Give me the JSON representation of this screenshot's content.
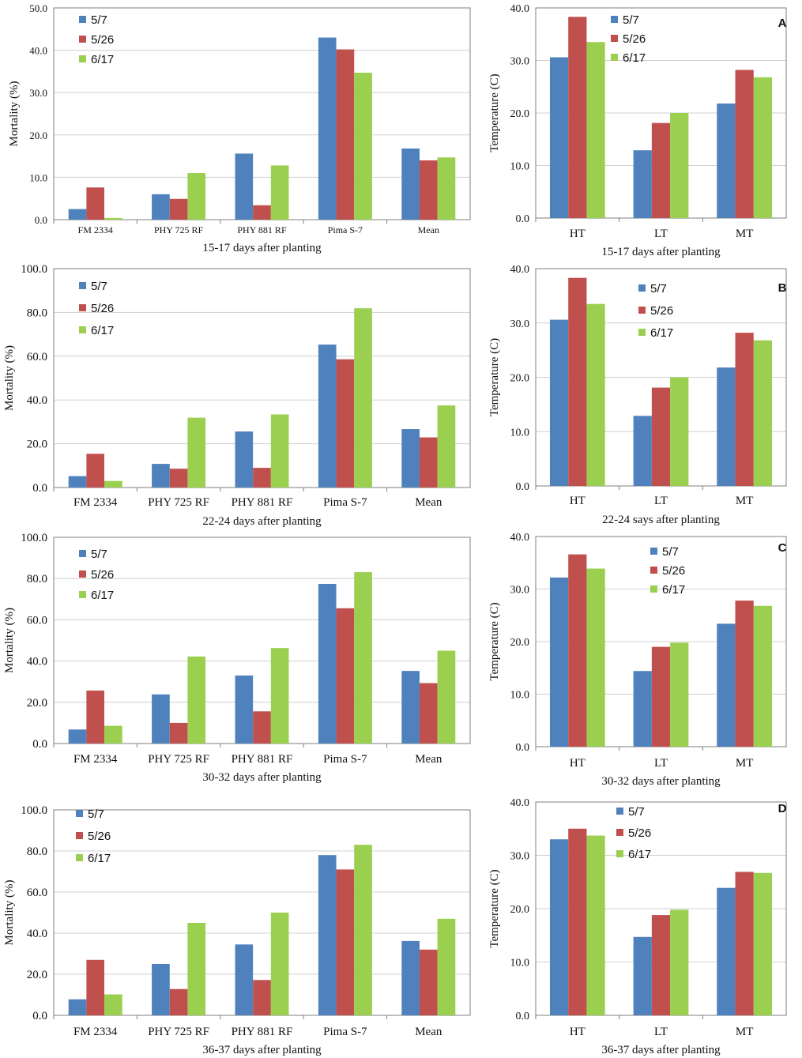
{
  "colors": {
    "s1": "#4f81bd",
    "s2": "#c0504d",
    "s3": "#9bcf4f",
    "axis": "#7f7f7f",
    "grid": "#d0d0d0"
  },
  "chart_data": [
    {
      "type": "bar",
      "id": "mort-a",
      "ylabel": "Mortality (%)",
      "xlabel": "15-17 days after planting",
      "ylim": [
        0,
        50
      ],
      "yticks": [
        "0.0",
        "10.0",
        "20.0",
        "30.0",
        "40.0",
        "50.0"
      ],
      "categories": [
        "FM 2334",
        "PHY 725 RF",
        "PHY 881 RF",
        "Pima S-7",
        "Mean"
      ],
      "series": [
        {
          "name": "5/7",
          "values": [
            2.5,
            6.0,
            15.6,
            43.0,
            16.8
          ]
        },
        {
          "name": "5/26",
          "values": [
            7.6,
            4.9,
            3.4,
            40.2,
            14.0
          ]
        },
        {
          "name": "6/17",
          "values": [
            0.4,
            11.0,
            12.8,
            34.7,
            14.7
          ]
        }
      ],
      "legend": "top-left"
    },
    {
      "type": "bar",
      "id": "temp-a",
      "panel_label": "A",
      "ylabel": "Temperature (C)",
      "xlabel": "15-17 days after planting",
      "ylim": [
        0,
        40
      ],
      "yticks": [
        "0.0",
        "10.0",
        "20.0",
        "30.0",
        "40.0"
      ],
      "categories": [
        "HT",
        "LT",
        "MT"
      ],
      "series": [
        {
          "name": "5/7",
          "values": [
            30.6,
            12.9,
            21.8
          ]
        },
        {
          "name": "5/26",
          "values": [
            38.3,
            18.1,
            28.2
          ]
        },
        {
          "name": "6/17",
          "values": [
            33.5,
            20.0,
            26.8
          ]
        }
      ],
      "legend": "top-center"
    },
    {
      "type": "bar",
      "id": "mort-b",
      "ylabel": "Mortality (%)",
      "xlabel": "22-24 days after planting",
      "ylim": [
        0,
        100
      ],
      "yticks": [
        "0.0",
        "20.0",
        "40.0",
        "60.0",
        "80.0",
        "100.0"
      ],
      "categories": [
        "FM 2334",
        "PHY 725 RF",
        "PHY 881 RF",
        "Pima S-7",
        "Mean"
      ],
      "series": [
        {
          "name": "5/7",
          "values": [
            5.2,
            10.8,
            25.6,
            65.3,
            26.7
          ]
        },
        {
          "name": "5/26",
          "values": [
            15.4,
            8.6,
            9.0,
            58.6,
            22.9
          ]
        },
        {
          "name": "6/17",
          "values": [
            3.0,
            31.9,
            33.4,
            81.9,
            37.5
          ]
        }
      ],
      "legend": "top-left"
    },
    {
      "type": "bar",
      "id": "temp-b",
      "panel_label": "B",
      "ylabel": "Temperature (C)",
      "xlabel": "22-24 says after planting",
      "ylim": [
        0,
        40
      ],
      "yticks": [
        "0.0",
        "10.0",
        "20.0",
        "30.0",
        "40.0"
      ],
      "categories": [
        "HT",
        "LT",
        "MT"
      ],
      "series": [
        {
          "name": "5/7",
          "values": [
            30.6,
            12.9,
            21.8
          ]
        },
        {
          "name": "5/26",
          "values": [
            38.3,
            18.1,
            28.2
          ]
        },
        {
          "name": "6/17",
          "values": [
            33.5,
            20.0,
            26.8
          ]
        }
      ],
      "legend": "top-center"
    },
    {
      "type": "bar",
      "id": "mort-c",
      "ylabel": "Mortality (%)",
      "xlabel": "30-32 days after planting",
      "ylim": [
        0,
        100
      ],
      "yticks": [
        "0.0",
        "20.0",
        "40.0",
        "60.0",
        "80.0",
        "100.0"
      ],
      "categories": [
        "FM 2334",
        "PHY 725 RF",
        "PHY 881 RF",
        "Pima S-7",
        "Mean"
      ],
      "series": [
        {
          "name": "5/7",
          "values": [
            6.8,
            23.8,
            33.0,
            77.4,
            35.2
          ]
        },
        {
          "name": "5/26",
          "values": [
            25.7,
            10.0,
            15.6,
            65.6,
            29.3
          ]
        },
        {
          "name": "6/17",
          "values": [
            8.6,
            42.2,
            46.3,
            83.1,
            45.0
          ]
        }
      ],
      "legend": "top-left"
    },
    {
      "type": "bar",
      "id": "temp-c",
      "panel_label": "C",
      "ylabel": "Temperature (C)",
      "xlabel": "30-32 days after planting",
      "ylim": [
        0,
        40
      ],
      "yticks": [
        "0.0",
        "10.0",
        "20.0",
        "30.0",
        "40.0"
      ],
      "categories": [
        "HT",
        "LT",
        "MT"
      ],
      "series": [
        {
          "name": "5/7",
          "values": [
            32.2,
            14.4,
            23.4
          ]
        },
        {
          "name": "5/26",
          "values": [
            36.6,
            19.0,
            27.8
          ]
        },
        {
          "name": "6/17",
          "values": [
            33.9,
            19.8,
            26.8
          ]
        }
      ],
      "legend": "top-center"
    },
    {
      "type": "bar",
      "id": "mort-d",
      "ylabel": "Mortality (%)",
      "xlabel": "36-37 days after planting",
      "ylim": [
        0,
        100
      ],
      "yticks": [
        "0.0",
        "20.0",
        "40.0",
        "60.0",
        "80.0",
        "100.0"
      ],
      "categories": [
        "FM 2334",
        "PHY 725 RF",
        "PHY 881 RF",
        "Pima S-7",
        "Mean"
      ],
      "series": [
        {
          "name": "5/7",
          "values": [
            7.8,
            25.0,
            34.5,
            78.0,
            36.2
          ]
        },
        {
          "name": "5/26",
          "values": [
            27.0,
            12.8,
            17.2,
            71.0,
            32.0
          ]
        },
        {
          "name": "6/17",
          "values": [
            10.2,
            45.0,
            50.0,
            83.0,
            47.0
          ]
        }
      ],
      "legend": "top-left"
    },
    {
      "type": "bar",
      "id": "temp-d",
      "panel_label": "D",
      "ylabel": "Temperature (C)",
      "xlabel": "36-37 days after planting",
      "ylim": [
        0,
        40
      ],
      "yticks": [
        "0.0",
        "10.0",
        "20.0",
        "30.0",
        "40.0"
      ],
      "categories": [
        "HT",
        "LT",
        "MT"
      ],
      "series": [
        {
          "name": "5/7",
          "values": [
            33.0,
            14.7,
            23.9
          ]
        },
        {
          "name": "5/26",
          "values": [
            35.0,
            18.8,
            26.9
          ]
        },
        {
          "name": "6/17",
          "values": [
            33.7,
            19.8,
            26.7
          ]
        }
      ],
      "legend": "top-center"
    }
  ]
}
